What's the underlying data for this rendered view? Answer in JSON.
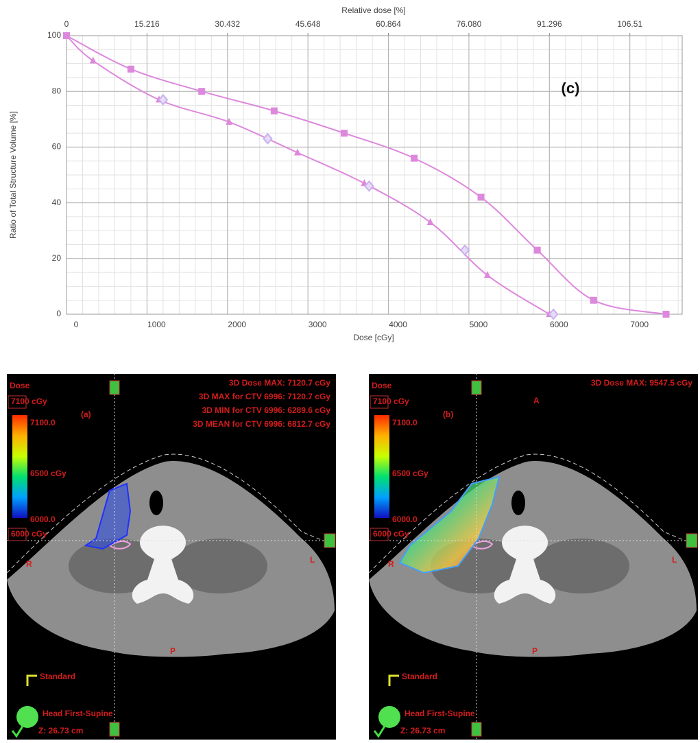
{
  "chart_data": {
    "type": "line",
    "x_label": "Dose [cGy]",
    "x2_label": "Relative dose [%]",
    "y_label": "Ratio of Total Structure Volume [%]",
    "annotation": "(c)",
    "xlim": [
      0,
      7650
    ],
    "xticks": [
      0,
      1000,
      2000,
      3000,
      4000,
      5000,
      6000,
      7000
    ],
    "x2lim": [
      0,
      116.4
    ],
    "x2ticks": [
      0,
      15.216,
      30.432,
      45.648,
      60.864,
      {
        "value": 76.08,
        "label": "76.080"
      },
      91.296,
      106.51
    ],
    "ylim": [
      0,
      100
    ],
    "yticks": [
      0,
      20,
      40,
      60,
      80,
      100
    ],
    "grid": true,
    "minor_grid": true,
    "series": [
      {
        "color": "#dd88dd",
        "marker": "square",
        "line": true,
        "x": [
          0,
          800,
          1680,
          2580,
          3450,
          4320,
          5150,
          5850,
          6550,
          7450
        ],
        "values": [
          100,
          88,
          80,
          73,
          65,
          56,
          42,
          23,
          5,
          0
        ]
      },
      {
        "color": "#dd88dd",
        "marker": "triangle",
        "line": true,
        "x": [
          0,
          330,
          1150,
          2020,
          2870,
          3700,
          4520,
          5230,
          6000
        ],
        "values": [
          100,
          91,
          77,
          69,
          58,
          47,
          33,
          14,
          0
        ]
      },
      {
        "color": "#c9b0ee",
        "marker": "diamond",
        "line": false,
        "x": [
          1200,
          2500,
          3760,
          4950,
          6050
        ],
        "values": [
          77,
          63,
          46,
          23,
          0
        ]
      }
    ]
  },
  "panels": [
    {
      "label": "(a)",
      "dose": "Dose",
      "max_box": "7100 cGy",
      "max_scale": "7100.0",
      "mid_scale": "6500 cGy",
      "min_scale": "6000.0",
      "min_box": "6000 cGy",
      "stats": [
        "3D Dose MAX: 7120.7 cGy",
        "3D MAX for CTV 6996: 7120.7 cGy",
        "3D MIN for CTV 6996: 6289.6 cGy",
        "3D MEAN for CTV 6996: 6812.7 cGy"
      ],
      "right": "R",
      "left": "L",
      "posterior": "P",
      "view": "Standard",
      "orientation": "Head First-Supine",
      "z": "Z: 26.73 cm"
    },
    {
      "label": "(b)",
      "dose": "Dose",
      "max_box": "7100 cGy",
      "max_scale": "7100.0",
      "mid_scale": "6500 cGy",
      "min_scale": "6000.0",
      "min_box": "6000 cGy",
      "stats": [
        "3D Dose MAX: 9547.5 cGy"
      ],
      "anterior": "A",
      "right": "R",
      "left": "L",
      "posterior": "P",
      "view": "Standard",
      "orientation": "Head First-Supine",
      "z": "Z: 26.73 cm"
    }
  ]
}
